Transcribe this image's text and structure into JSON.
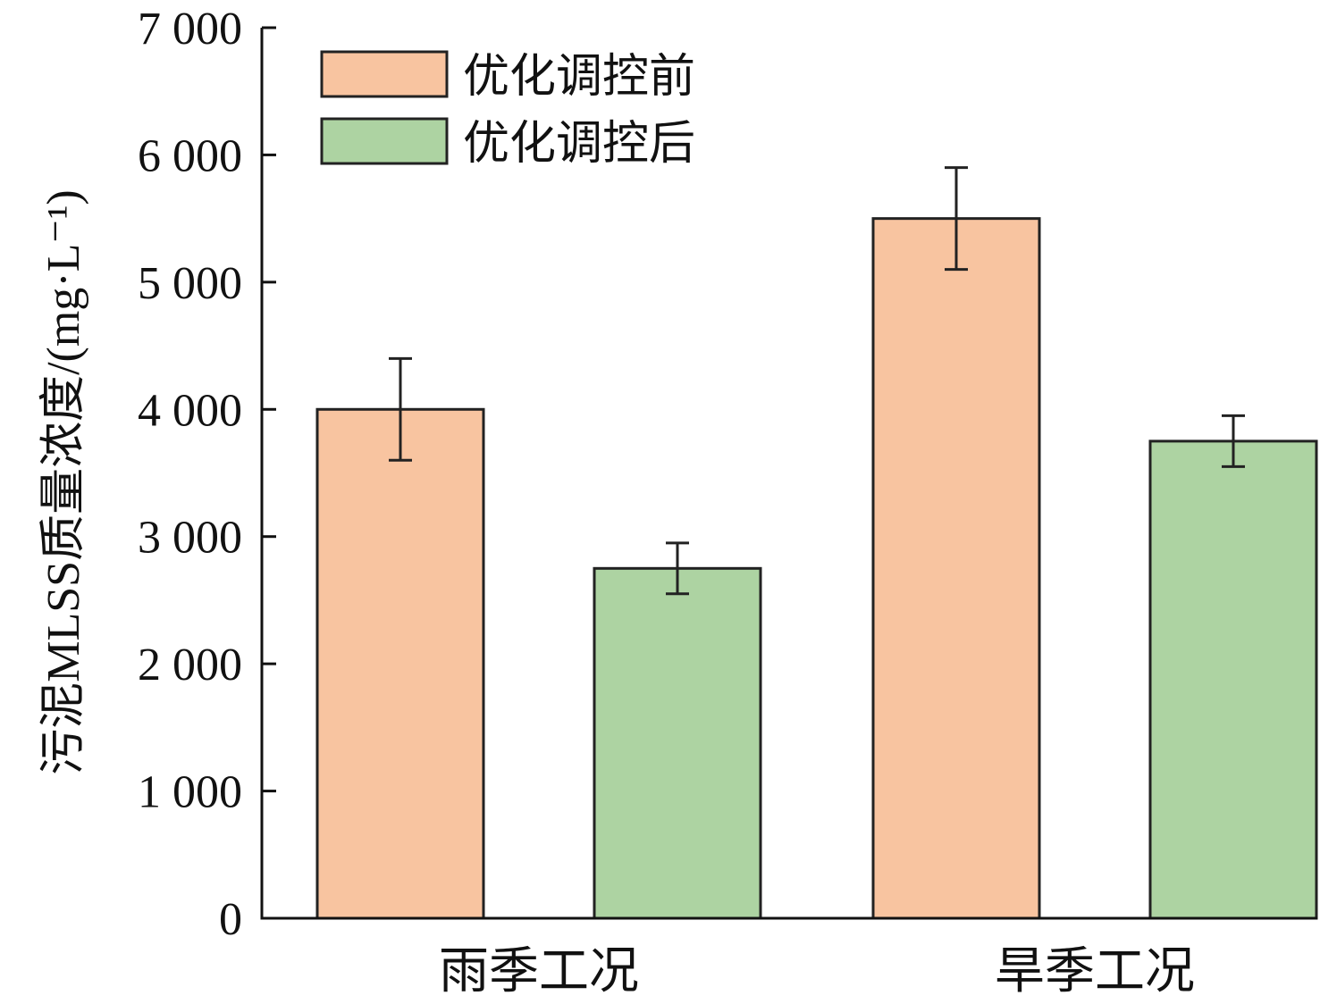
{
  "chart_data": {
    "type": "bar",
    "title": "",
    "xlabel": "",
    "ylabel": "污泥MLSS质量浓度/(mg·L⁻¹)",
    "ylim": [
      0,
      7000
    ],
    "yticks": [
      0,
      1000,
      2000,
      3000,
      4000,
      5000,
      6000,
      7000
    ],
    "ytick_labels": [
      "0",
      "1 000",
      "2 000",
      "3 000",
      "4 000",
      "5 000",
      "6 000",
      "7 000"
    ],
    "categories": [
      "雨季工况",
      "旱季工况"
    ],
    "legend_position": "top-left",
    "grid": false,
    "series": [
      {
        "name": "优化调控前",
        "color": "#f8c4a0",
        "values": [
          4000,
          5500
        ],
        "errors": [
          400,
          400
        ]
      },
      {
        "name": "优化调控后",
        "color": "#add3a2",
        "values": [
          2750,
          3750
        ],
        "errors": [
          200,
          200
        ]
      }
    ]
  }
}
